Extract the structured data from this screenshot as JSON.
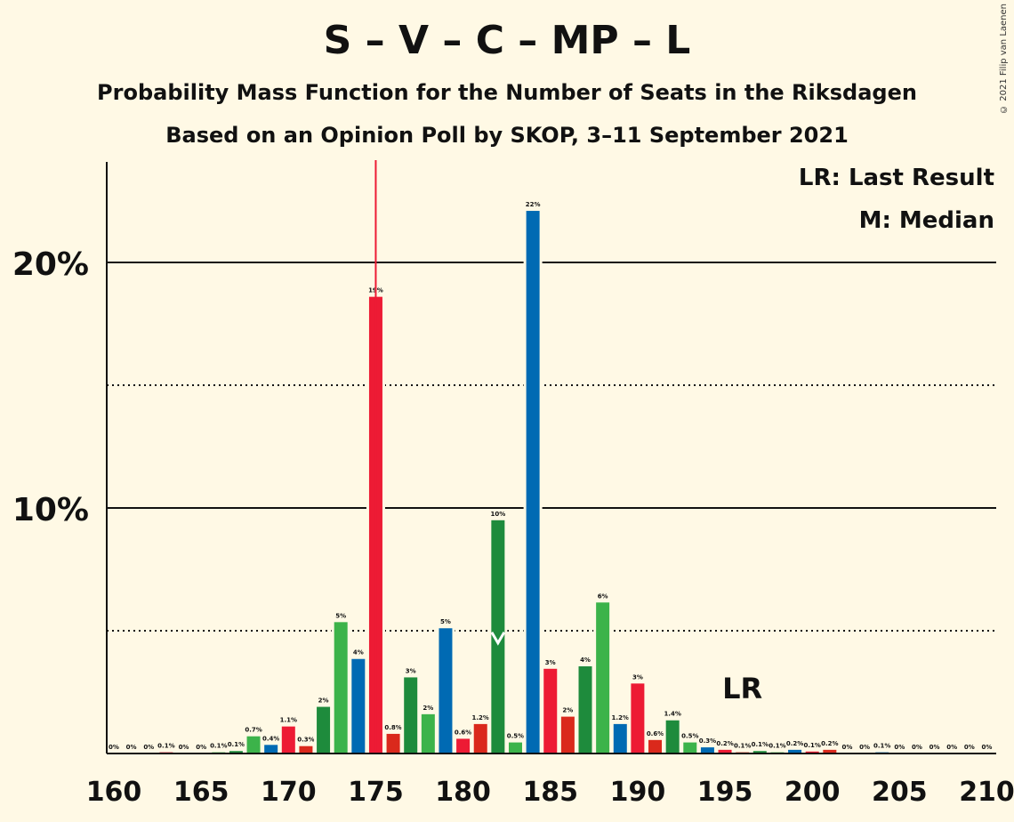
{
  "title": "S – V – C – MP – L",
  "subtitle1": "Probability Mass Function for the Number of Seats in the Riksdagen",
  "subtitle2": "Based on an Opinion Poll by SKOP, 3–11 September 2021",
  "credit": "© 2021 Filip van Laenen",
  "legend": {
    "last_result": "LR: Last Result",
    "median": "M: Median"
  },
  "chart_data": {
    "type": "bar",
    "xlim": [
      160,
      210
    ],
    "ylim": [
      0,
      24
    ],
    "x_ticks": [
      "160",
      "165",
      "170",
      "175",
      "180",
      "185",
      "190",
      "195",
      "200",
      "205",
      "210"
    ],
    "y_ticks": [
      "10%",
      "20%"
    ],
    "solid_gridlines": [
      10,
      20
    ],
    "dotted_gridlines": [
      5,
      15
    ],
    "last_result": 175,
    "last_result_label": "LR",
    "median": 182,
    "colors": {
      "S": "#ed1b34",
      "V": "#da291c",
      "C": "#009933",
      "MP": "#83cf39",
      "L": "#006ab3",
      "C_dark": "#1e8b3c",
      "MP_green": "#3cb34a"
    },
    "bars": [
      {
        "x": 160,
        "value": 0,
        "label": "0%",
        "color": "#1e8b3c"
      },
      {
        "x": 161,
        "value": 0,
        "label": "0%",
        "color": "#3cb34a"
      },
      {
        "x": 162,
        "value": 0,
        "label": "0%",
        "color": "#006ab3"
      },
      {
        "x": 163,
        "value": 0.05,
        "label": "0.1%",
        "color": "#ed1b34"
      },
      {
        "x": 164,
        "value": 0,
        "label": "0%",
        "color": "#da291c"
      },
      {
        "x": 165,
        "value": 0,
        "label": "0%",
        "color": "#1e8b3c"
      },
      {
        "x": 166,
        "value": 0.05,
        "label": "0.1%",
        "color": "#3cb34a"
      },
      {
        "x": 167,
        "value": 0.1,
        "label": "0.1%",
        "color": "#1e8b3c"
      },
      {
        "x": 168,
        "value": 0.7,
        "label": "0.7%",
        "color": "#3cb34a"
      },
      {
        "x": 169,
        "value": 0.35,
        "label": "0.4%",
        "color": "#006ab3"
      },
      {
        "x": 170,
        "value": 1.1,
        "label": "1.1%",
        "color": "#ed1b34"
      },
      {
        "x": 171,
        "value": 0.3,
        "label": "0.3%",
        "color": "#da291c"
      },
      {
        "x": 172,
        "value": 1.9,
        "label": "2%",
        "color": "#1e8b3c"
      },
      {
        "x": 173,
        "value": 5.35,
        "label": "5%",
        "color": "#3cb34a"
      },
      {
        "x": 174,
        "value": 3.85,
        "label": "4%",
        "color": "#006ab3"
      },
      {
        "x": 175,
        "value": 18.6,
        "label": "19%",
        "color": "#ed1b34"
      },
      {
        "x": 176,
        "value": 0.8,
        "label": "0.8%",
        "color": "#da291c"
      },
      {
        "x": 177,
        "value": 3.1,
        "label": "3%",
        "color": "#1e8b3c"
      },
      {
        "x": 178,
        "value": 1.6,
        "label": "2%",
        "color": "#3cb34a"
      },
      {
        "x": 179,
        "value": 5.1,
        "label": "5%",
        "color": "#006ab3"
      },
      {
        "x": 180,
        "value": 0.6,
        "label": "0.6%",
        "color": "#ed1b34"
      },
      {
        "x": 181,
        "value": 1.2,
        "label": "1.2%",
        "color": "#da291c"
      },
      {
        "x": 182,
        "value": 9.5,
        "label": "10%",
        "color": "#1e8b3c"
      },
      {
        "x": 183,
        "value": 0.45,
        "label": "0.5%",
        "color": "#3cb34a"
      },
      {
        "x": 184,
        "value": 22.1,
        "label": "22%",
        "color": "#006ab3"
      },
      {
        "x": 185,
        "value": 3.45,
        "label": "3%",
        "color": "#ed1b34"
      },
      {
        "x": 186,
        "value": 1.5,
        "label": "2%",
        "color": "#da291c"
      },
      {
        "x": 187,
        "value": 3.55,
        "label": "4%",
        "color": "#1e8b3c"
      },
      {
        "x": 188,
        "value": 6.15,
        "label": "6%",
        "color": "#3cb34a"
      },
      {
        "x": 189,
        "value": 1.2,
        "label": "1.2%",
        "color": "#006ab3"
      },
      {
        "x": 190,
        "value": 2.85,
        "label": "3%",
        "color": "#ed1b34"
      },
      {
        "x": 191,
        "value": 0.55,
        "label": "0.6%",
        "color": "#da291c"
      },
      {
        "x": 192,
        "value": 1.35,
        "label": "1.4%",
        "color": "#1e8b3c"
      },
      {
        "x": 193,
        "value": 0.45,
        "label": "0.5%",
        "color": "#3cb34a"
      },
      {
        "x": 194,
        "value": 0.25,
        "label": "0.3%",
        "color": "#006ab3"
      },
      {
        "x": 195,
        "value": 0.15,
        "label": "0.2%",
        "color": "#ed1b34"
      },
      {
        "x": 196,
        "value": 0.05,
        "label": "0.1%",
        "color": "#da291c"
      },
      {
        "x": 197,
        "value": 0.1,
        "label": "0.1%",
        "color": "#1e8b3c"
      },
      {
        "x": 198,
        "value": 0.05,
        "label": "0.1%",
        "color": "#3cb34a"
      },
      {
        "x": 199,
        "value": 0.15,
        "label": "0.2%",
        "color": "#006ab3"
      },
      {
        "x": 200,
        "value": 0.08,
        "label": "0.1%",
        "color": "#ed1b34"
      },
      {
        "x": 201,
        "value": 0.15,
        "label": "0.2%",
        "color": "#da291c"
      },
      {
        "x": 202,
        "value": 0,
        "label": "0%",
        "color": "#1e8b3c"
      },
      {
        "x": 203,
        "value": 0,
        "label": "0%",
        "color": "#3cb34a"
      },
      {
        "x": 204,
        "value": 0.05,
        "label": "0.1%",
        "color": "#006ab3"
      },
      {
        "x": 205,
        "value": 0,
        "label": "0%",
        "color": "#ed1b34"
      },
      {
        "x": 206,
        "value": 0,
        "label": "0%",
        "color": "#da291c"
      },
      {
        "x": 207,
        "value": 0,
        "label": "0%",
        "color": "#1e8b3c"
      },
      {
        "x": 208,
        "value": 0,
        "label": "0%",
        "color": "#3cb34a"
      },
      {
        "x": 209,
        "value": 0,
        "label": "0%",
        "color": "#006ab3"
      },
      {
        "x": 210,
        "value": 0,
        "label": "0%",
        "color": "#ed1b34"
      }
    ]
  }
}
